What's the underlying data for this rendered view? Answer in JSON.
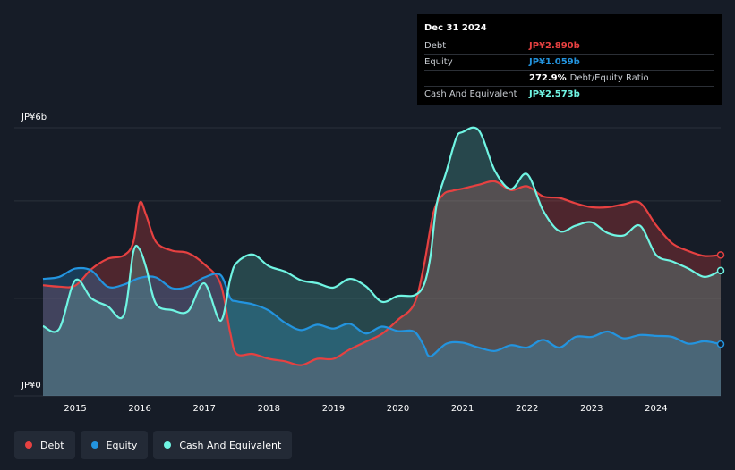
{
  "tooltip": {
    "date": "Dec 31 2024",
    "rows": [
      {
        "label": "Debt",
        "value": "JP¥2.890b",
        "color": "#e64141"
      },
      {
        "label": "Equity",
        "value": "JP¥1.059b",
        "color": "#2394df"
      },
      {
        "label": "",
        "value": "272.9%",
        "extra": "Debt/Equity Ratio",
        "color": "#ffffff"
      },
      {
        "label": "Cash And Equivalent",
        "value": "JP¥2.573b",
        "color": "#70f5e3"
      }
    ]
  },
  "legend": [
    {
      "label": "Debt",
      "color": "#e64141"
    },
    {
      "label": "Equity",
      "color": "#2394df"
    },
    {
      "label": "Cash And Equivalent",
      "color": "#70f5e3"
    }
  ],
  "chart_data": {
    "type": "area",
    "title": "",
    "xlabel": "",
    "ylabel": "",
    "ylim": [
      0,
      5.5
    ],
    "xlim": [
      2014.5,
      2025.0
    ],
    "y_tick_labels": [
      {
        "value": 5.5,
        "label": "JP¥6b"
      },
      {
        "value": 0,
        "label": "JP¥0"
      }
    ],
    "x_ticks": [
      2015,
      2016,
      2017,
      2018,
      2019,
      2020,
      2021,
      2022,
      2023,
      2024
    ],
    "x_tick_labels": [
      "2015",
      "2016",
      "2017",
      "2018",
      "2019",
      "2020",
      "2021",
      "2022",
      "2023",
      "2024"
    ],
    "grid": true,
    "legend_position": "bottom-left",
    "series": [
      {
        "name": "Debt",
        "color": "#e64141",
        "points": [
          [
            2014.5,
            2.27
          ],
          [
            2014.75,
            2.24
          ],
          [
            2015.0,
            2.26
          ],
          [
            2015.25,
            2.6
          ],
          [
            2015.5,
            2.81
          ],
          [
            2015.75,
            2.88
          ],
          [
            2015.9,
            3.15
          ],
          [
            2016.0,
            3.96
          ],
          [
            2016.1,
            3.7
          ],
          [
            2016.25,
            3.16
          ],
          [
            2016.5,
            2.98
          ],
          [
            2016.75,
            2.93
          ],
          [
            2017.0,
            2.7
          ],
          [
            2017.25,
            2.3
          ],
          [
            2017.4,
            1.3
          ],
          [
            2017.5,
            0.86
          ],
          [
            2017.75,
            0.86
          ],
          [
            2018.0,
            0.76
          ],
          [
            2018.25,
            0.71
          ],
          [
            2018.5,
            0.63
          ],
          [
            2018.75,
            0.76
          ],
          [
            2019.0,
            0.76
          ],
          [
            2019.25,
            0.95
          ],
          [
            2019.5,
            1.11
          ],
          [
            2019.75,
            1.27
          ],
          [
            2020.0,
            1.56
          ],
          [
            2020.25,
            1.88
          ],
          [
            2020.4,
            2.66
          ],
          [
            2020.55,
            3.76
          ],
          [
            2020.7,
            4.13
          ],
          [
            2020.85,
            4.21
          ],
          [
            2021.0,
            4.25
          ],
          [
            2021.25,
            4.33
          ],
          [
            2021.5,
            4.4
          ],
          [
            2021.75,
            4.22
          ],
          [
            2022.0,
            4.3
          ],
          [
            2022.25,
            4.09
          ],
          [
            2022.5,
            4.06
          ],
          [
            2022.75,
            3.95
          ],
          [
            2023.0,
            3.87
          ],
          [
            2023.25,
            3.87
          ],
          [
            2023.5,
            3.93
          ],
          [
            2023.75,
            3.96
          ],
          [
            2024.0,
            3.5
          ],
          [
            2024.25,
            3.13
          ],
          [
            2024.5,
            2.97
          ],
          [
            2024.75,
            2.87
          ],
          [
            2025.0,
            2.89
          ]
        ]
      },
      {
        "name": "Equity",
        "color": "#2394df",
        "points": [
          [
            2014.5,
            2.4
          ],
          [
            2014.75,
            2.44
          ],
          [
            2015.0,
            2.61
          ],
          [
            2015.25,
            2.57
          ],
          [
            2015.5,
            2.24
          ],
          [
            2015.75,
            2.28
          ],
          [
            2016.0,
            2.42
          ],
          [
            2016.25,
            2.43
          ],
          [
            2016.5,
            2.21
          ],
          [
            2016.75,
            2.24
          ],
          [
            2017.0,
            2.43
          ],
          [
            2017.25,
            2.48
          ],
          [
            2017.4,
            2.01
          ],
          [
            2017.5,
            1.94
          ],
          [
            2017.75,
            1.88
          ],
          [
            2018.0,
            1.75
          ],
          [
            2018.25,
            1.5
          ],
          [
            2018.5,
            1.35
          ],
          [
            2018.75,
            1.46
          ],
          [
            2019.0,
            1.38
          ],
          [
            2019.25,
            1.48
          ],
          [
            2019.5,
            1.28
          ],
          [
            2019.75,
            1.42
          ],
          [
            2020.0,
            1.33
          ],
          [
            2020.25,
            1.32
          ],
          [
            2020.4,
            1.03
          ],
          [
            2020.5,
            0.81
          ],
          [
            2020.75,
            1.07
          ],
          [
            2021.0,
            1.09
          ],
          [
            2021.25,
            0.99
          ],
          [
            2021.5,
            0.92
          ],
          [
            2021.75,
            1.04
          ],
          [
            2022.0,
            0.99
          ],
          [
            2022.25,
            1.15
          ],
          [
            2022.5,
            0.99
          ],
          [
            2022.75,
            1.21
          ],
          [
            2023.0,
            1.21
          ],
          [
            2023.25,
            1.32
          ],
          [
            2023.5,
            1.18
          ],
          [
            2023.75,
            1.25
          ],
          [
            2024.0,
            1.23
          ],
          [
            2024.25,
            1.21
          ],
          [
            2024.5,
            1.07
          ],
          [
            2024.75,
            1.12
          ],
          [
            2025.0,
            1.06
          ]
        ]
      },
      {
        "name": "Cash And Equivalent",
        "color": "#70f5e3",
        "points": [
          [
            2014.5,
            1.43
          ],
          [
            2014.75,
            1.37
          ],
          [
            2015.0,
            2.37
          ],
          [
            2015.25,
            2.0
          ],
          [
            2015.5,
            1.84
          ],
          [
            2015.75,
            1.65
          ],
          [
            2015.9,
            2.95
          ],
          [
            2016.0,
            3.0
          ],
          [
            2016.1,
            2.62
          ],
          [
            2016.25,
            1.89
          ],
          [
            2016.5,
            1.76
          ],
          [
            2016.75,
            1.74
          ],
          [
            2017.0,
            2.31
          ],
          [
            2017.25,
            1.54
          ],
          [
            2017.4,
            2.39
          ],
          [
            2017.5,
            2.73
          ],
          [
            2017.75,
            2.9
          ],
          [
            2018.0,
            2.66
          ],
          [
            2018.25,
            2.55
          ],
          [
            2018.5,
            2.37
          ],
          [
            2018.75,
            2.31
          ],
          [
            2019.0,
            2.22
          ],
          [
            2019.25,
            2.4
          ],
          [
            2019.5,
            2.25
          ],
          [
            2019.75,
            1.93
          ],
          [
            2020.0,
            2.05
          ],
          [
            2020.25,
            2.06
          ],
          [
            2020.4,
            2.27
          ],
          [
            2020.5,
            2.84
          ],
          [
            2020.6,
            3.93
          ],
          [
            2020.75,
            4.6
          ],
          [
            2020.9,
            5.28
          ],
          [
            2021.0,
            5.41
          ],
          [
            2021.25,
            5.45
          ],
          [
            2021.5,
            4.62
          ],
          [
            2021.75,
            4.24
          ],
          [
            2022.0,
            4.55
          ],
          [
            2022.25,
            3.8
          ],
          [
            2022.5,
            3.38
          ],
          [
            2022.75,
            3.49
          ],
          [
            2023.0,
            3.56
          ],
          [
            2023.25,
            3.34
          ],
          [
            2023.5,
            3.29
          ],
          [
            2023.75,
            3.49
          ],
          [
            2024.0,
            2.89
          ],
          [
            2024.25,
            2.76
          ],
          [
            2024.5,
            2.61
          ],
          [
            2024.75,
            2.44
          ],
          [
            2025.0,
            2.57
          ]
        ]
      }
    ]
  }
}
